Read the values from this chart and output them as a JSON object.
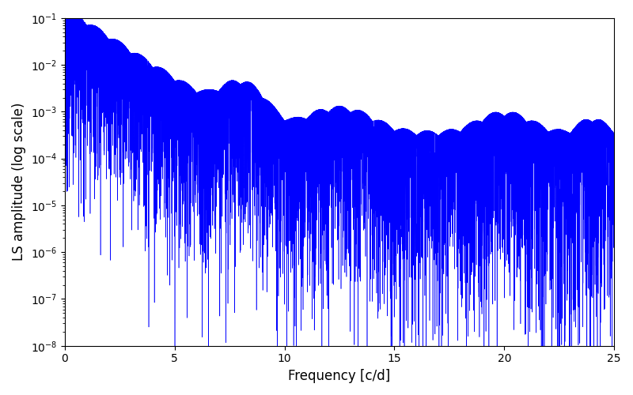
{
  "xlabel": "Frequency [c/d]",
  "ylabel": "LS amplitude (log scale)",
  "xlim": [
    0,
    25
  ],
  "ylim": [
    1e-08,
    0.1
  ],
  "line_color": "#0000ff",
  "line_width": 0.4,
  "background_color": "#ffffff",
  "figsize": [
    8.0,
    5.0
  ],
  "dpi": 100,
  "seed": 12345,
  "n_points": 8000,
  "freq_max": 25.0
}
